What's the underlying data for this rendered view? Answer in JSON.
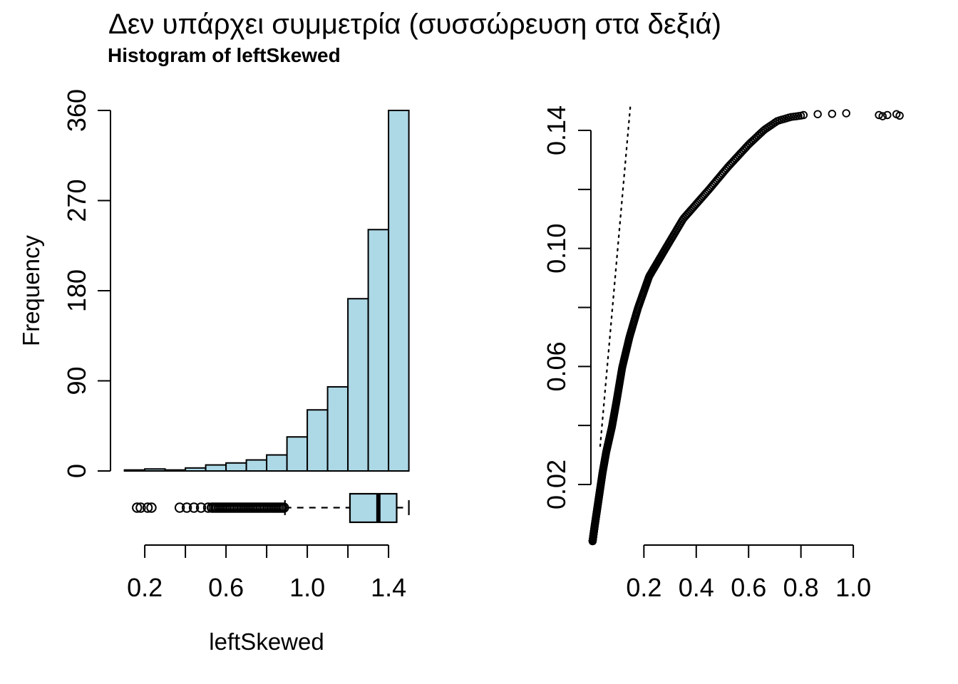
{
  "page_title": "Δεν υπάρχει συμμετρία (συσσώρευση στα δεξιά)",
  "colors": {
    "bar_fill": "#ADD8E6",
    "stroke": "#000000",
    "background": "#FFFFFF"
  },
  "chart_data": [
    {
      "type": "bar",
      "subtype": "histogram",
      "title": "Histogram of leftSkewed",
      "xlabel": "leftSkewed",
      "ylabel": "Frequency",
      "bin_edges": [
        0.1,
        0.2,
        0.3,
        0.4,
        0.5,
        0.6,
        0.7,
        0.8,
        0.9,
        1.0,
        1.1,
        1.2,
        1.3,
        1.4,
        1.5
      ],
      "values": [
        1,
        2,
        1,
        3,
        6,
        8,
        11,
        16,
        34,
        61,
        84,
        172,
        241,
        360
      ],
      "x_tick_values": [
        0.2,
        0.4,
        0.6,
        0.8,
        1.0,
        1.2,
        1.4
      ],
      "x_tick_labels": [
        "0.2",
        "",
        "0.6",
        "",
        "1.0",
        "",
        "1.4"
      ],
      "y_tick_values": [
        0,
        90,
        180,
        270,
        360
      ],
      "y_tick_labels": [
        "0",
        "90",
        "180",
        "270",
        "360"
      ],
      "ylim": [
        0,
        360
      ],
      "grid": false
    },
    {
      "type": "boxplot",
      "orientation": "horizontal",
      "stats": {
        "whisker_low": 0.89,
        "q1": 1.21,
        "median": 1.35,
        "q3": 1.44,
        "whisker_high": 1.5
      },
      "outliers_sparse": [
        0.162,
        0.18,
        0.214,
        0.233,
        0.372,
        0.407,
        0.442,
        0.477,
        0.512
      ],
      "outliers_dense_band": {
        "from": 0.53,
        "to": 0.885,
        "count": 42
      }
    },
    {
      "type": "scatter",
      "subtype": "symmetry-plot",
      "x_tick_values": [
        0.2,
        0.4,
        0.6,
        0.8,
        1.0
      ],
      "x_tick_labels": [
        "0.2",
        "0.4",
        "0.6",
        "0.8",
        "1.0"
      ],
      "y_tick_values": [
        0.02,
        0.04,
        0.06,
        0.08,
        0.1,
        0.12,
        0.14
      ],
      "y_tick_labels": [
        "0.02",
        "",
        "0.06",
        "",
        "0.10",
        "",
        "0.14"
      ],
      "xlim": [
        0,
        1.2
      ],
      "ylim": [
        0,
        0.1455
      ],
      "grid": false,
      "reference_line": {
        "style": "dotted",
        "from": [
          0.033,
          0.033
        ],
        "to": [
          0.1478,
          0.1478
        ]
      },
      "curve_anchors": [
        [
          0.004,
          0.0008
        ],
        [
          0.012,
          0.006
        ],
        [
          0.022,
          0.012
        ],
        [
          0.032,
          0.018
        ],
        [
          0.042,
          0.024
        ],
        [
          0.056,
          0.031
        ],
        [
          0.078,
          0.0396
        ],
        [
          0.095,
          0.048
        ],
        [
          0.117,
          0.0596
        ],
        [
          0.145,
          0.07
        ],
        [
          0.177,
          0.0797
        ],
        [
          0.22,
          0.0905
        ],
        [
          0.283,
          0.1
        ],
        [
          0.35,
          0.11
        ],
        [
          0.449,
          0.12
        ],
        [
          0.52,
          0.1275
        ],
        [
          0.6,
          0.1352
        ],
        [
          0.66,
          0.1402
        ],
        [
          0.71,
          0.1432
        ],
        [
          0.76,
          0.1445
        ],
        [
          0.8,
          0.145
        ]
      ],
      "curve_point_count": 480,
      "tail_points": [
        [
          0.81,
          0.1452
        ],
        [
          0.864,
          0.1455
        ],
        [
          0.919,
          0.1456
        ],
        [
          0.973,
          0.1458
        ],
        [
          1.098,
          0.1452
        ],
        [
          1.112,
          0.1448
        ],
        [
          1.13,
          0.1452
        ],
        [
          1.165,
          0.1455
        ],
        [
          1.177,
          0.145
        ]
      ]
    }
  ]
}
